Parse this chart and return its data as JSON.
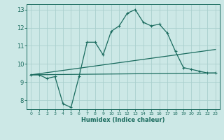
{
  "xlabel": "Humidex (Indice chaleur)",
  "background_color": "#cce8e6",
  "grid_color": "#aacfcd",
  "line_color": "#1a6b5e",
  "xlim": [
    -0.5,
    23.5
  ],
  "ylim": [
    7.5,
    13.3
  ],
  "xticks": [
    0,
    1,
    2,
    3,
    4,
    5,
    6,
    7,
    8,
    9,
    10,
    11,
    12,
    13,
    14,
    15,
    16,
    17,
    18,
    19,
    20,
    21,
    22,
    23
  ],
  "yticks": [
    8,
    9,
    10,
    11,
    12,
    13
  ],
  "line1_x": [
    0,
    1,
    2,
    3,
    4,
    5,
    6,
    7,
    8,
    9,
    10,
    11,
    12,
    13,
    14,
    15,
    16,
    17,
    18,
    19,
    20,
    21,
    22,
    23
  ],
  "line1_y": [
    9.4,
    9.4,
    9.2,
    9.3,
    7.8,
    7.6,
    9.3,
    11.2,
    11.2,
    10.5,
    11.8,
    12.1,
    12.8,
    13.0,
    12.3,
    12.1,
    12.2,
    11.7,
    10.7,
    9.8,
    9.7,
    9.6,
    9.5,
    9.5
  ],
  "line2_x": [
    0,
    23
  ],
  "line2_y": [
    9.4,
    9.5
  ],
  "line3_x": [
    0,
    23
  ],
  "line3_y": [
    9.4,
    10.8
  ]
}
